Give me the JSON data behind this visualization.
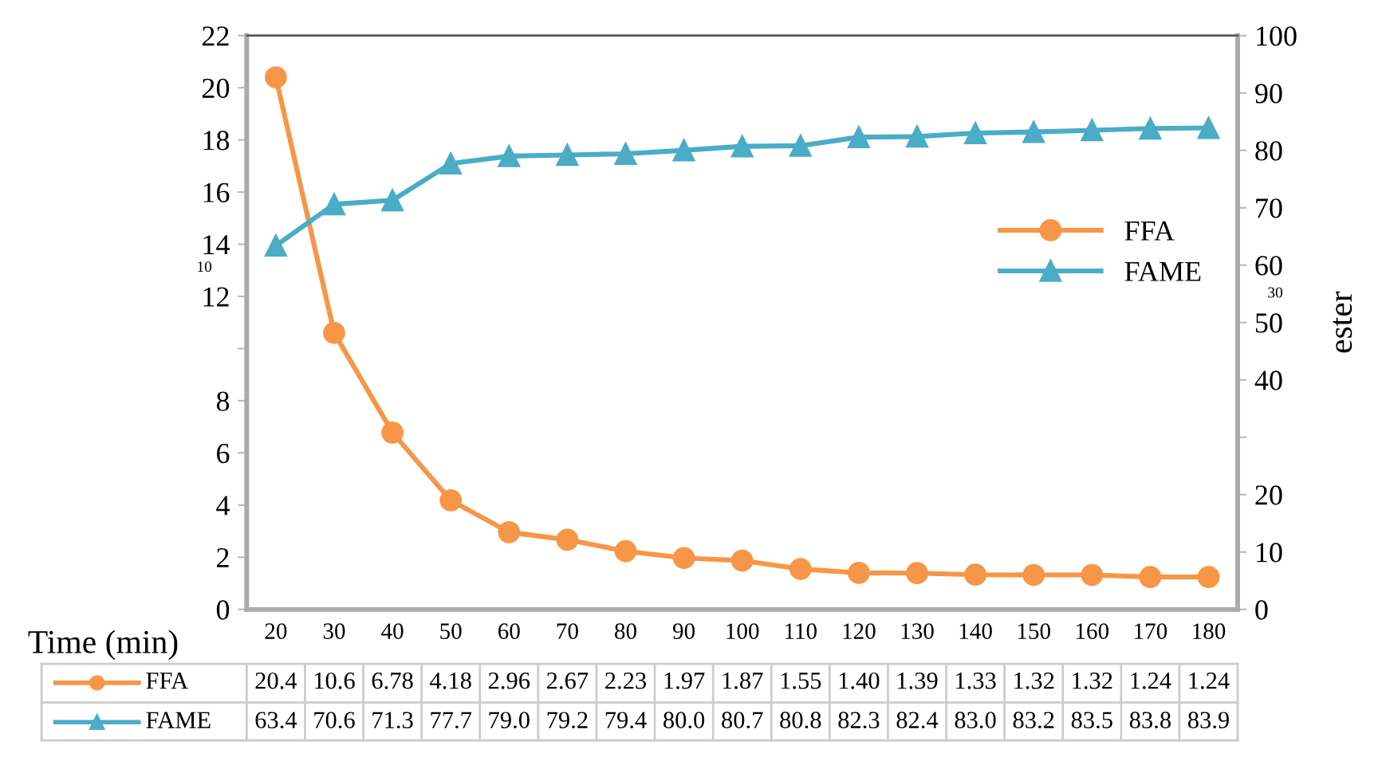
{
  "chart_data": {
    "type": "line",
    "xlabel": "Time (min)",
    "y2label": "ester",
    "categories": [
      "20",
      "30",
      "40",
      "50",
      "60",
      "70",
      "80",
      "90",
      "100",
      "110",
      "120",
      "130",
      "140",
      "150",
      "160",
      "170",
      "180"
    ],
    "series": [
      {
        "name": "FFA",
        "color": "#f79646",
        "marker": "circle",
        "values": [
          20.4,
          10.6,
          6.78,
          4.18,
          2.96,
          2.67,
          2.23,
          1.97,
          1.87,
          1.55,
          1.4,
          1.39,
          1.33,
          1.32,
          1.32,
          1.24,
          1.24
        ],
        "value_labels": [
          "20.4",
          "10.6",
          "6.78",
          "4.18",
          "2.96",
          "2.67",
          "2.23",
          "1.97",
          "1.87",
          "1.55",
          "1.40",
          "1.39",
          "1.33",
          "1.32",
          "1.32",
          "1.24",
          "1.24"
        ]
      },
      {
        "name": "FAME",
        "color": "#4bacc6",
        "marker": "triangle",
        "axis": "y2",
        "values": [
          63.4,
          70.6,
          71.3,
          77.7,
          79.0,
          79.2,
          79.4,
          80.0,
          80.7,
          80.8,
          82.3,
          82.4,
          83.0,
          83.2,
          83.5,
          83.8,
          83.9
        ],
        "value_labels": [
          "63.4",
          "70.6",
          "71.3",
          "77.7",
          "79.0",
          "79.2",
          "79.4",
          "80.0",
          "80.7",
          "80.8",
          "82.3",
          "82.4",
          "83.0",
          "83.2",
          "83.5",
          "83.8",
          "83.9"
        ]
      }
    ],
    "ylim": [
      0,
      22
    ],
    "yticks": [
      0,
      2,
      4,
      6,
      8,
      {
        "value": 10,
        "label": null
      },
      12,
      14,
      16,
      18,
      20,
      22
    ],
    "y2lim": [
      0,
      100
    ],
    "y2ticks": [
      0,
      10,
      20,
      {
        "value": 30,
        "label": null
      },
      40,
      50,
      60,
      70,
      80,
      90,
      100
    ],
    "annotations": [
      "10",
      "30"
    ],
    "legend": "right",
    "line_style": "solid"
  }
}
